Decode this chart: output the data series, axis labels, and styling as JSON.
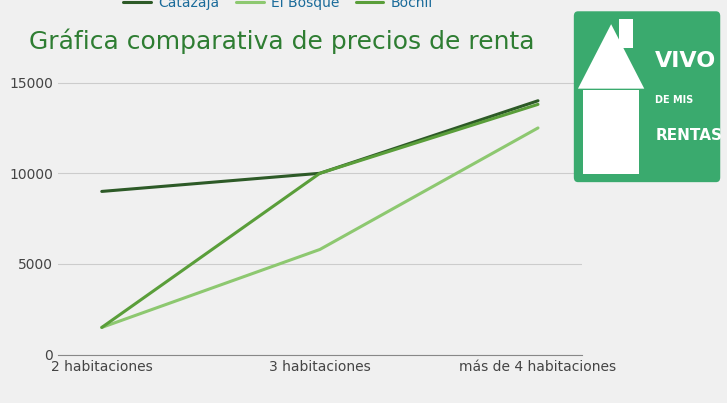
{
  "title": "Gráfica comparativa de precios de renta",
  "title_color": "#2e7d32",
  "title_fontsize": 18,
  "background_color": "#f0f0f0",
  "categories": [
    "2 habitaciones",
    "3 habitaciones",
    "más de 4 habitaciones"
  ],
  "series": [
    {
      "name": "Catazajá",
      "values": [
        9000,
        10000,
        14000
      ],
      "color": "#2d5a27",
      "linewidth": 2.2
    },
    {
      "name": "El Bosque",
      "values": [
        1500,
        5800,
        12500
      ],
      "color": "#8dc870",
      "linewidth": 2.2
    },
    {
      "name": "Bochil",
      "values": [
        1500,
        10000,
        13800
      ],
      "color": "#5a9e3a",
      "linewidth": 2.2
    }
  ],
  "ylim": [
    0,
    16000
  ],
  "yticks": [
    0,
    5000,
    10000,
    15000
  ],
  "grid_color": "#cccccc",
  "legend_color": "#1a6b9a",
  "legend_fontsize": 10,
  "axis_fontsize": 10,
  "logo_bg": "#3aaa6e",
  "logo_text1": "VIVO",
  "logo_text2": "DE MIS",
  "logo_text3": "RENTAS"
}
